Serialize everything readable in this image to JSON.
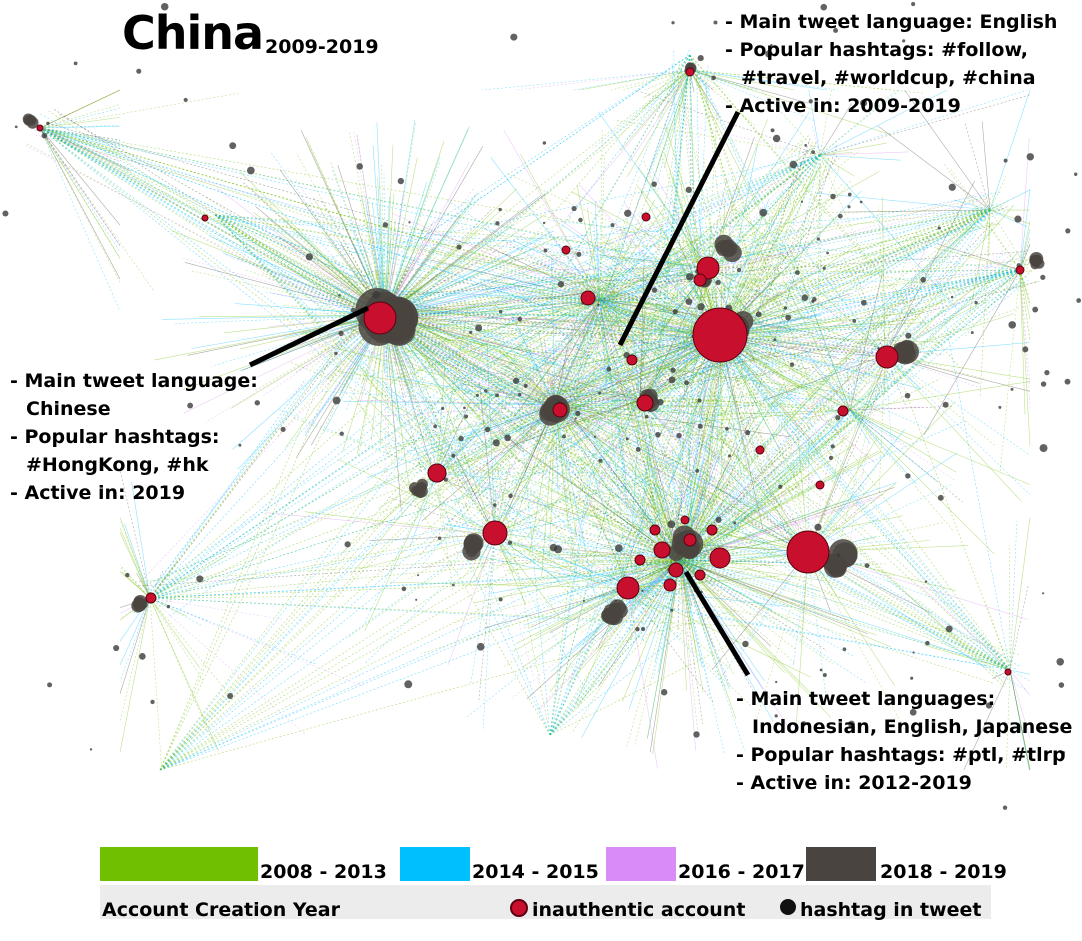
{
  "title": "China",
  "subtitle": "2009-2019",
  "annotations": {
    "top": {
      "lines": [
        "- Main tweet language: English",
        "- Popular hashtags:  #follow,",
        "#travel, #worldcup, #china",
        "- Active in: 2009-2019"
      ]
    },
    "left": {
      "lines": [
        "- Main tweet language:",
        "Chinese",
        "- Popular hashtags:",
        "#HongKong, #hk",
        "- Active in: 2019"
      ]
    },
    "bottom": {
      "lines": [
        "- Main tweet languages:",
        "Indonesian, English, Japanese",
        "- Popular hashtags: #ptl, #tlrp",
        "- Active in: 2012-2019"
      ]
    }
  },
  "legend": {
    "creation_years": [
      {
        "label": "2008 - 2013",
        "color": "#70bf00"
      },
      {
        "label": "2014 - 2015",
        "color": "#00bfff"
      },
      {
        "label": "2016 - 2017",
        "color": "#d98cf5"
      },
      {
        "label": "2018 - 2019",
        "color": "#4a4440"
      }
    ],
    "caption": "Account Creation Year",
    "inauthentic_label": "inauthentic account",
    "inauthentic_color": "#c8102e",
    "hashtag_label": "hashtag in tweet",
    "hashtag_color": "#111111"
  }
}
